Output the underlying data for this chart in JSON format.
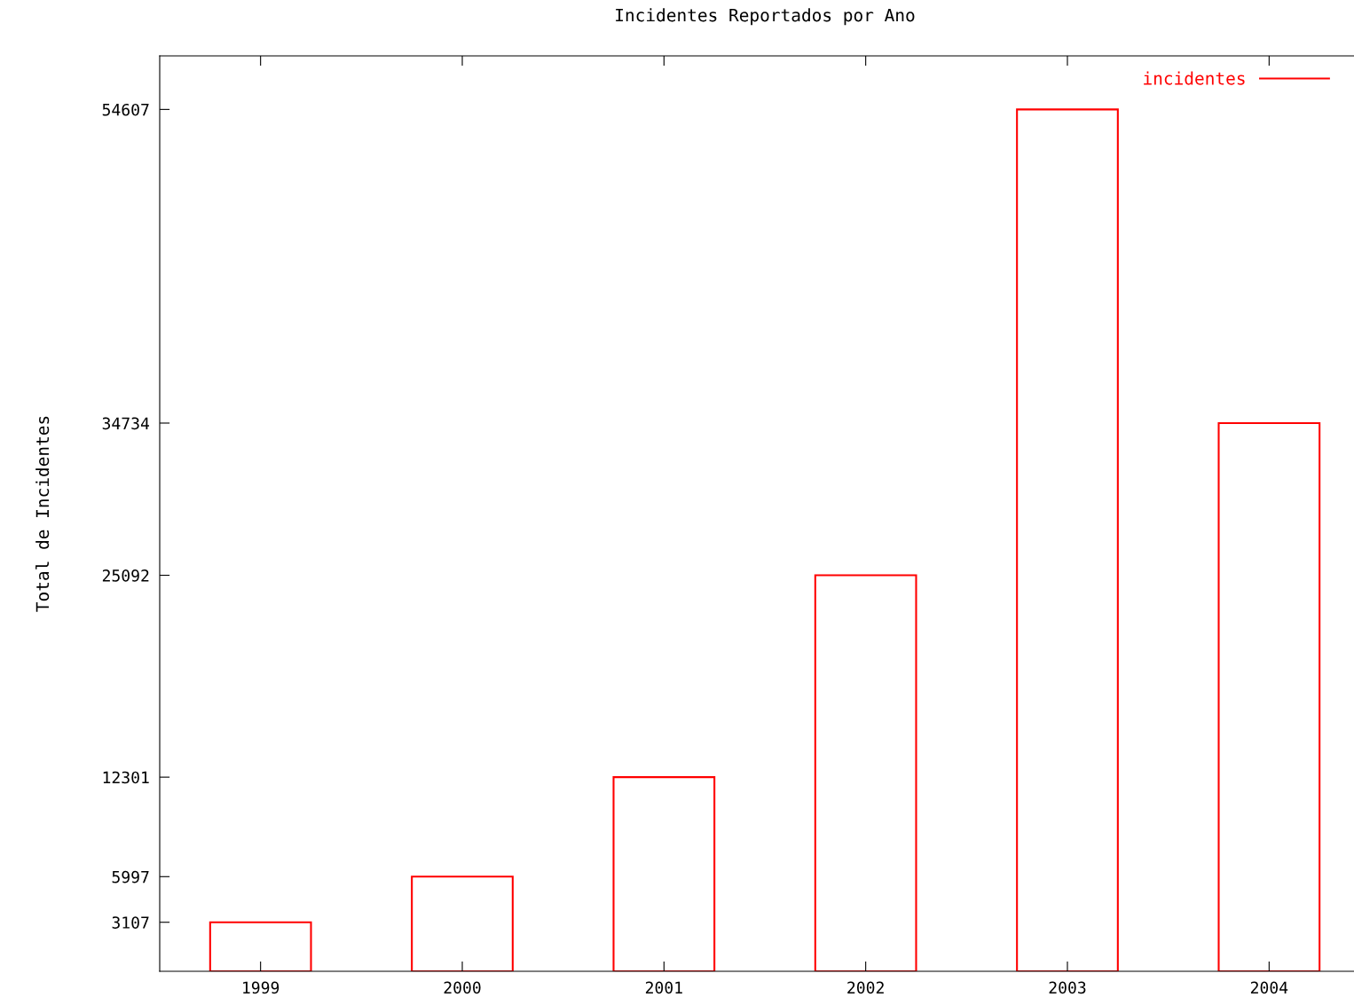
{
  "chart_data": {
    "type": "bar",
    "title": "Incidentes Reportados por Ano",
    "ylabel": "Total de Incidentes",
    "categories": [
      "1999",
      "2000",
      "2001",
      "2002",
      "2003",
      "2004"
    ],
    "series": [
      {
        "name": "incidentes",
        "color": "#ff0000",
        "values": [
          3107,
          5997,
          12301,
          25092,
          54607,
          34734
        ]
      }
    ],
    "ylim": [
      0,
      58000
    ],
    "yticks": [
      3107,
      5997,
      12301,
      25092,
      34734,
      54607
    ],
    "grid": false,
    "legend": "top right"
  }
}
